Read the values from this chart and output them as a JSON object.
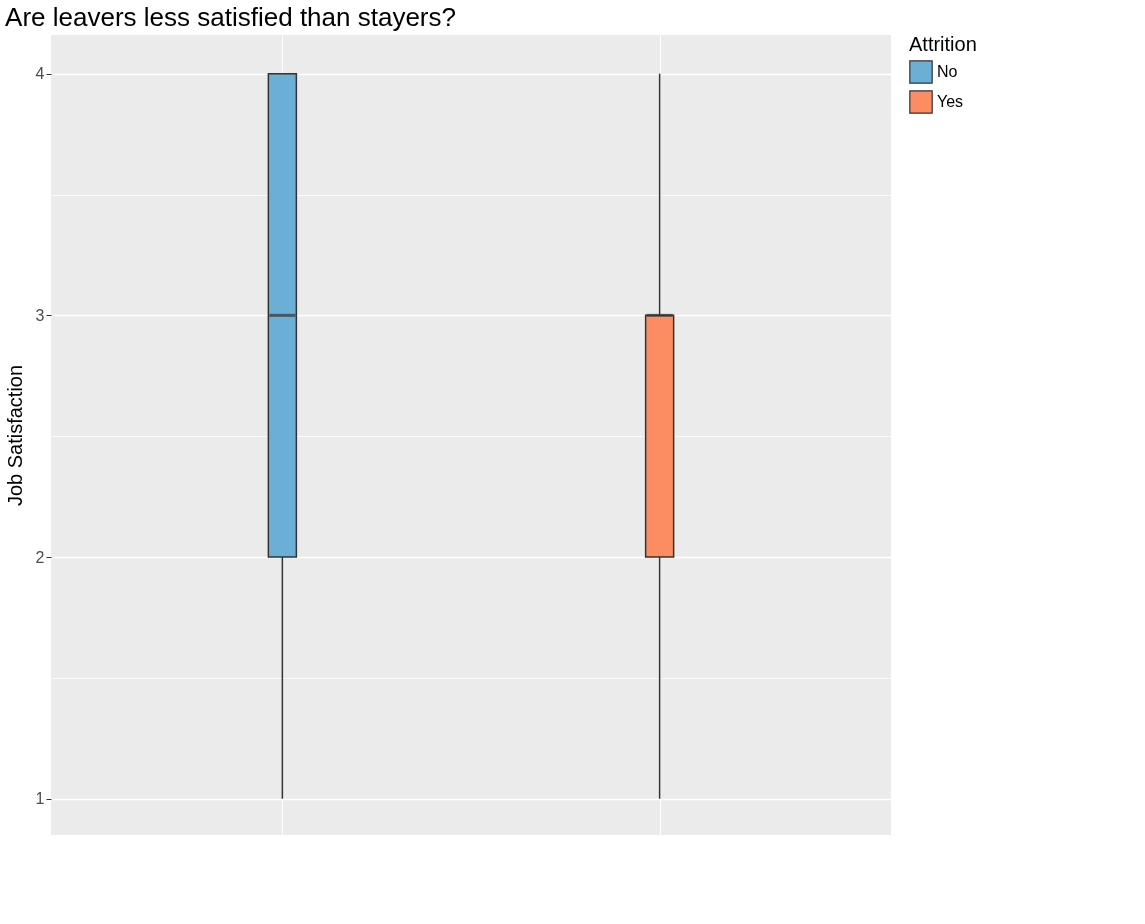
{
  "chart_data": {
    "type": "box",
    "title": "Are leavers less satisfied than stayers?",
    "ylabel": "Job Satisfaction",
    "legend_title": "Attrition",
    "categories": [
      null,
      null
    ],
    "series": [
      {
        "name": "No",
        "color": "#6baed6",
        "boxes": [
          {
            "low": 1,
            "q1": 2,
            "median": 3,
            "q3": 4,
            "high": 4
          },
          null
        ]
      },
      {
        "name": "Yes",
        "color": "#fc8d62",
        "boxes": [
          null,
          {
            "low": 1,
            "q1": 2,
            "median": 3,
            "q3": 3,
            "high": 4
          }
        ]
      }
    ],
    "ylim": [
      0.85,
      4.16
    ],
    "yticks": [
      1,
      {
        "value": 1.5,
        "label": null
      },
      2,
      {
        "value": 2.5,
        "label": null
      },
      3,
      {
        "value": 3.5,
        "label": null
      },
      4
    ],
    "grid": true,
    "legend": "right",
    "tick_labels": "y"
  }
}
